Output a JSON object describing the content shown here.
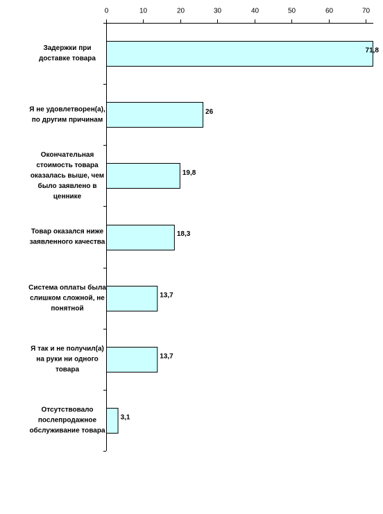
{
  "chart_data": {
    "type": "bar",
    "orientation": "horizontal",
    "categories": [
      [
        "Задержки при",
        "доставке товара"
      ],
      [
        "Я не удовлетворен(а),",
        "по другим причинам"
      ],
      [
        "Окончательная",
        "стоимость товара",
        "оказалась выше, чем",
        "было заявлено в",
        "ценнике"
      ],
      [
        "Товар оказался ниже",
        "заявленного качества"
      ],
      [
        "Система оплаты была",
        "слишком сложной, не",
        "понятной"
      ],
      [
        "Я так и не получил(а)",
        "на руки ни одного",
        "товара"
      ],
      [
        "Отсутствовало",
        "послепродажное",
        "обслуживание товара"
      ]
    ],
    "values": [
      71.8,
      26,
      19.8,
      18.3,
      13.7,
      13.7,
      3.1
    ],
    "value_labels": [
      "71,8",
      "26",
      "19,8",
      "18,3",
      "13,7",
      "13,7",
      "3,1"
    ],
    "color": "#ccffff",
    "xlim": [
      0,
      72
    ],
    "xticks": [
      0,
      10,
      20,
      30,
      40,
      50,
      60,
      70
    ]
  }
}
